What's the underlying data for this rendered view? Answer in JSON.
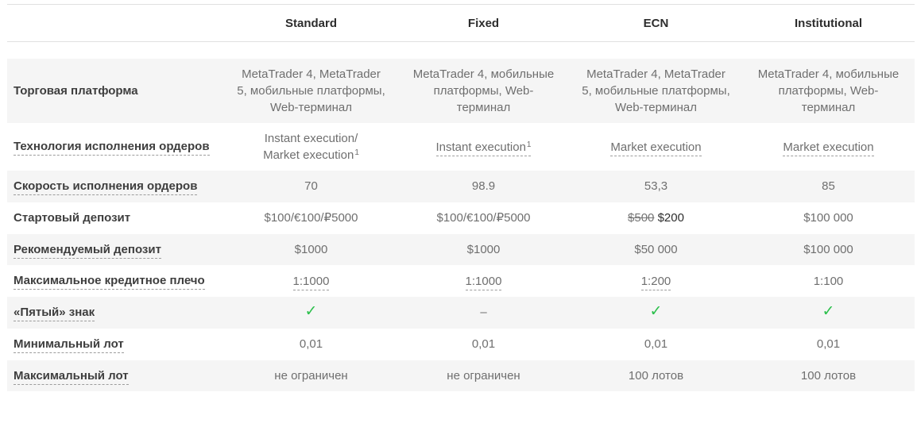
{
  "colors": {
    "row_alt_bg": "#f5f5f5",
    "header_border": "#e0e0e0",
    "label_text": "#3e3e3e",
    "value_text": "#6f6f6f",
    "check_green": "#2abf4a",
    "dashed_underline": "#9c9c9c"
  },
  "icons": {
    "check": "✓"
  },
  "table": {
    "header": {
      "columns": [
        "Standard",
        "Fixed",
        "ECN",
        "Institutional"
      ]
    },
    "rows": [
      {
        "label": "Торговая платформа",
        "label_underline": false,
        "cells": [
          {
            "kind": "text",
            "lines": [
              "MetaTrader 4, MetaTrader 5, мобильные платформы, Web-терминал"
            ]
          },
          {
            "kind": "text",
            "lines": [
              "MetaTrader 4, мобильные платформы, Web-терминал"
            ]
          },
          {
            "kind": "text",
            "lines": [
              "MetaTrader 4, MetaTrader 5, мобильные платформы, Web-терминал"
            ]
          },
          {
            "kind": "text",
            "lines": [
              "MetaTrader 4, мобильные платформы, Web-терминал"
            ]
          }
        ]
      },
      {
        "label": "Технология исполнения ордеров",
        "label_underline": true,
        "cells": [
          {
            "kind": "text",
            "lines": [
              "Instant execution/",
              "Market execution"
            ],
            "sup": "1"
          },
          {
            "kind": "text",
            "lines": [
              "Instant execution"
            ],
            "sup": "1",
            "underline": true
          },
          {
            "kind": "text",
            "lines": [
              "Market execution"
            ],
            "underline": true
          },
          {
            "kind": "text",
            "lines": [
              "Market execution"
            ],
            "underline": true
          }
        ]
      },
      {
        "label": "Скорость исполнения ордеров",
        "label_underline": true,
        "cells": [
          {
            "kind": "text",
            "lines": [
              "70"
            ]
          },
          {
            "kind": "text",
            "lines": [
              "98.9"
            ]
          },
          {
            "kind": "text",
            "lines": [
              "53,3"
            ]
          },
          {
            "kind": "text",
            "lines": [
              "85"
            ]
          }
        ]
      },
      {
        "label": "Стартовый депозит",
        "label_underline": false,
        "cells": [
          {
            "kind": "text",
            "lines": [
              "$100/€100/₽5000"
            ]
          },
          {
            "kind": "text",
            "lines": [
              "$100/€100/₽5000"
            ]
          },
          {
            "kind": "strike",
            "old": "$500",
            "new": "$200"
          },
          {
            "kind": "text",
            "lines": [
              "$100 000"
            ]
          }
        ]
      },
      {
        "label": "Рекомендуемый депозит",
        "label_underline": true,
        "cells": [
          {
            "kind": "text",
            "lines": [
              "$1000"
            ]
          },
          {
            "kind": "text",
            "lines": [
              "$1000"
            ]
          },
          {
            "kind": "text",
            "lines": [
              "$50 000"
            ]
          },
          {
            "kind": "text",
            "lines": [
              "$100 000"
            ]
          }
        ]
      },
      {
        "label": "Максимальное кредитное плечо",
        "label_underline": true,
        "cells": [
          {
            "kind": "text",
            "lines": [
              "1:1000"
            ],
            "underline": true
          },
          {
            "kind": "text",
            "lines": [
              "1:1000"
            ],
            "underline": true
          },
          {
            "kind": "text",
            "lines": [
              "1:200"
            ],
            "underline": true
          },
          {
            "kind": "text",
            "lines": [
              "1:100"
            ]
          }
        ]
      },
      {
        "label": "«Пятый» знак",
        "label_underline": true,
        "cells": [
          {
            "kind": "check"
          },
          {
            "kind": "text",
            "lines": [
              "–"
            ]
          },
          {
            "kind": "check"
          },
          {
            "kind": "check"
          }
        ]
      },
      {
        "label": "Минимальный лот",
        "label_underline": true,
        "cells": [
          {
            "kind": "text",
            "lines": [
              "0,01"
            ]
          },
          {
            "kind": "text",
            "lines": [
              "0,01"
            ]
          },
          {
            "kind": "text",
            "lines": [
              "0,01"
            ]
          },
          {
            "kind": "text",
            "lines": [
              "0,01"
            ]
          }
        ]
      },
      {
        "label": "Максимальный лот",
        "label_underline": true,
        "cells": [
          {
            "kind": "text",
            "lines": [
              "не ограничен"
            ]
          },
          {
            "kind": "text",
            "lines": [
              "не ограничен"
            ]
          },
          {
            "kind": "text",
            "lines": [
              "100 лотов"
            ]
          },
          {
            "kind": "text",
            "lines": [
              "100 лотов"
            ]
          }
        ]
      }
    ]
  }
}
